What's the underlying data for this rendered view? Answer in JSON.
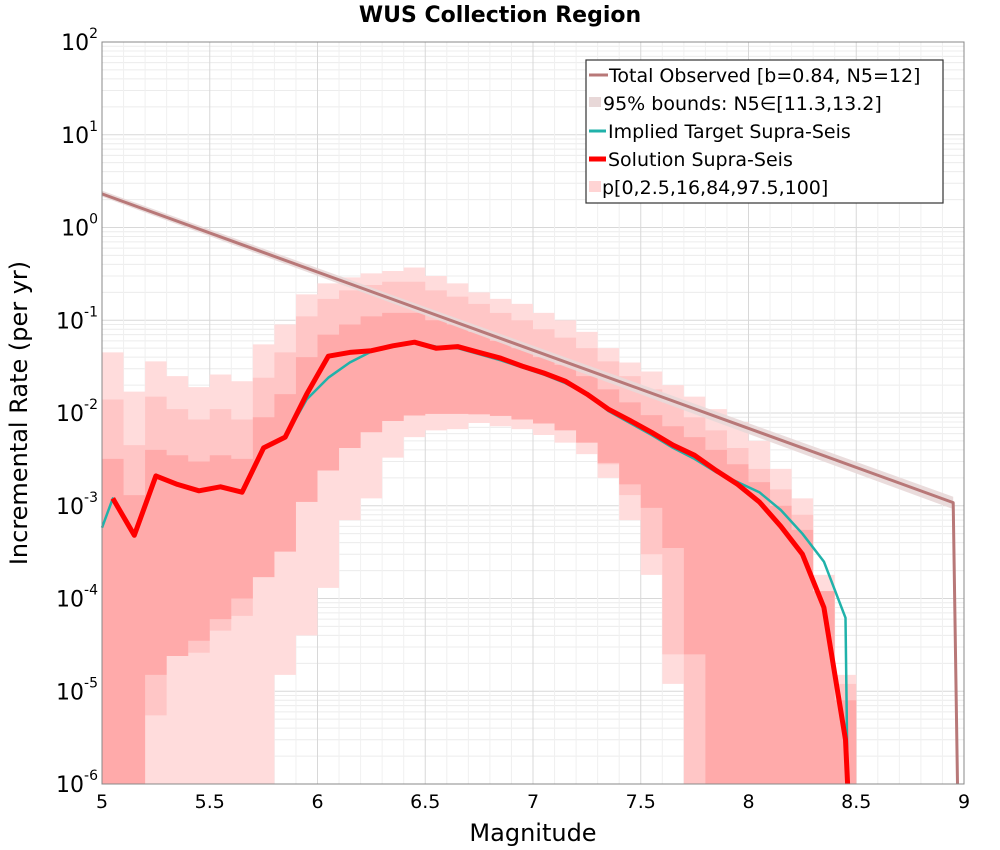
{
  "chart_data": {
    "type": "line",
    "title": "WUS Collection Region",
    "xlabel": "Magnitude",
    "ylabel": "Incremental Rate (per yr)",
    "xlim": [
      5,
      9
    ],
    "ylim": [
      1e-06,
      100
    ],
    "yscale": "log",
    "grid": true,
    "legend_position": "top-right",
    "x_ticks": [
      5,
      5.5,
      6,
      6.5,
      7,
      7.5,
      8,
      8.5,
      9
    ],
    "x_tick_labels": [
      "5",
      "5.5",
      "6",
      "6.5",
      "7",
      "7.5",
      "8",
      "8.5",
      "9"
    ],
    "y_ticks": [
      {
        "value": 1e-06,
        "base": "10",
        "exp": "-6"
      },
      {
        "value": 1e-05,
        "base": "10",
        "exp": "-5"
      },
      {
        "value": 0.0001,
        "base": "10",
        "exp": "-4"
      },
      {
        "value": 0.001,
        "base": "10",
        "exp": "-3"
      },
      {
        "value": 0.01,
        "base": "10",
        "exp": "-2"
      },
      {
        "value": 0.1,
        "base": "10",
        "exp": "-1"
      },
      {
        "value": 1,
        "base": "10",
        "exp": "0"
      },
      {
        "value": 10,
        "base": "10",
        "exp": "1"
      },
      {
        "value": 100,
        "base": "10",
        "exp": "2"
      }
    ],
    "series": [
      {
        "name": "Total Observed [b=0.84, N5=12]",
        "color": "#b87878",
        "style": "line",
        "x": [
          5.0,
          8.95,
          8.97
        ],
        "y": [
          2.3,
          0.00108,
          1e-06
        ]
      },
      {
        "name": "95% bounds: N5∈[11.3,13.2]",
        "color": "#e8d8d8",
        "style": "band",
        "x": [
          5.0,
          8.95
        ],
        "y_low": [
          2.15,
          0.00092
        ],
        "y_high": [
          2.5,
          0.00125
        ]
      },
      {
        "name": "Implied Target Supra-Seis",
        "color": "#20b2aa",
        "style": "line",
        "x": [
          5.0,
          5.05,
          5.15,
          5.25,
          5.35,
          5.45,
          5.55,
          5.65,
          5.75,
          5.85,
          5.95,
          6.05,
          6.15,
          6.25,
          6.35,
          6.45,
          6.55,
          6.65,
          6.75,
          6.85,
          6.95,
          7.05,
          7.15,
          7.25,
          7.35,
          7.45,
          7.55,
          7.65,
          7.75,
          7.85,
          7.95,
          8.05,
          8.15,
          8.25,
          8.35,
          8.45,
          8.46
        ],
        "y": [
          0.00058,
          0.0012,
          0.00048,
          0.0021,
          0.0017,
          0.00145,
          0.0016,
          0.0014,
          0.0042,
          0.0055,
          0.014,
          0.024,
          0.035,
          0.046,
          0.052,
          0.058,
          0.052,
          0.05,
          0.043,
          0.037,
          0.031,
          0.026,
          0.021,
          0.016,
          0.0105,
          0.0078,
          0.0058,
          0.0042,
          0.0032,
          0.0023,
          0.0018,
          0.0014,
          0.0009,
          0.0005,
          0.00025,
          6.2e-05,
          1e-06
        ]
      },
      {
        "name": "Solution Supra-Seis",
        "color": "#ff0000",
        "style": "line",
        "x": [
          5.05,
          5.15,
          5.25,
          5.35,
          5.45,
          5.55,
          5.65,
          5.75,
          5.85,
          5.95,
          6.05,
          6.15,
          6.25,
          6.35,
          6.45,
          6.55,
          6.65,
          6.75,
          6.85,
          6.95,
          7.05,
          7.15,
          7.25,
          7.35,
          7.45,
          7.55,
          7.65,
          7.75,
          7.85,
          7.95,
          8.05,
          8.15,
          8.25,
          8.35,
          8.45,
          8.46
        ],
        "y": [
          0.0012,
          0.00048,
          0.0021,
          0.0017,
          0.00145,
          0.0016,
          0.0014,
          0.0042,
          0.0055,
          0.016,
          0.041,
          0.045,
          0.047,
          0.053,
          0.058,
          0.05,
          0.052,
          0.045,
          0.039,
          0.032,
          0.027,
          0.022,
          0.016,
          0.011,
          0.0083,
          0.0062,
          0.0045,
          0.0035,
          0.0024,
          0.0017,
          0.0011,
          0.0006,
          0.0003,
          8e-05,
          3e-06,
          1e-06
        ]
      },
      {
        "name": "p[0,2.5,16,84,97.5,100]",
        "color": "#ffb4b4",
        "style": "percentile-bands",
        "x": [
          5.05,
          5.15,
          5.25,
          5.35,
          5.45,
          5.55,
          5.65,
          5.75,
          5.85,
          5.95,
          6.05,
          6.15,
          6.25,
          6.35,
          6.45,
          6.55,
          6.65,
          6.75,
          6.85,
          6.95,
          7.05,
          7.15,
          7.25,
          7.35,
          7.45,
          7.55,
          7.65,
          7.75,
          7.85,
          7.95,
          8.05,
          8.15,
          8.25,
          8.35,
          8.45
        ],
        "bands": [
          {
            "percentiles": "0-100",
            "low": [
              1e-06,
              1e-06,
              1e-06,
              1e-06,
              1e-06,
              1e-06,
              1e-06,
              1e-06,
              1.5e-05,
              4e-05,
              0.00013,
              0.0007,
              0.0012,
              0.0033,
              0.0055,
              0.0065,
              0.0067,
              0.0078,
              0.0072,
              0.0067,
              0.0058,
              0.0048,
              0.0036,
              0.002,
              0.0007,
              0.00018,
              1.2e-05,
              1e-06,
              1e-06,
              1e-06,
              1e-06,
              1e-06,
              1e-06,
              1e-06,
              1e-06
            ],
            "high": [
              0.045,
              0.017,
              0.036,
              0.025,
              0.019,
              0.026,
              0.022,
              0.055,
              0.09,
              0.19,
              0.25,
              0.29,
              0.32,
              0.34,
              0.37,
              0.3,
              0.25,
              0.2,
              0.17,
              0.15,
              0.12,
              0.1,
              0.075,
              0.05,
              0.035,
              0.028,
              0.02,
              0.015,
              0.011,
              0.008,
              0.005,
              0.0025,
              0.0012,
              0.00018,
              1.5e-05
            ]
          },
          {
            "percentiles": "2.5-97.5",
            "low": [
              1e-06,
              1e-06,
              5.5e-06,
              2.4e-05,
              2.6e-05,
              4.5e-05,
              6.5e-05,
              0.00017,
              0.00034,
              0.0011,
              0.0025,
              0.0045,
              0.0065,
              0.0085,
              0.0095,
              0.0098,
              0.0098,
              0.0097,
              0.0093,
              0.0088,
              0.0078,
              0.0067,
              0.0048,
              0.0028,
              0.0013,
              0.0003,
              2.5e-05,
              1e-06,
              1e-06,
              1e-06,
              1e-06,
              1e-06,
              1e-06,
              1e-06,
              1e-06
            ],
            "high": [
              0.014,
              0.0045,
              0.015,
              0.011,
              0.0085,
              0.011,
              0.0085,
              0.024,
              0.045,
              0.11,
              0.17,
              0.21,
              0.24,
              0.26,
              0.26,
              0.21,
              0.18,
              0.15,
              0.12,
              0.1,
              0.08,
              0.065,
              0.05,
              0.036,
              0.025,
              0.018,
              0.013,
              0.009,
              0.0065,
              0.0042,
              0.0025,
              0.0015,
              0.0008,
              0.00012,
              1.2e-05
            ]
          },
          {
            "percentiles": "16-84",
            "low": [
              1e-06,
              1e-06,
              1.5e-05,
              2.4e-05,
              3.5e-05,
              6e-05,
              0.0001,
              0.00017,
              0.00032,
              0.0011,
              0.0024,
              0.0042,
              0.0062,
              0.0082,
              0.0094,
              0.0098,
              0.0098,
              0.0097,
              0.0093,
              0.0085,
              0.0077,
              0.0065,
              0.0048,
              0.0029,
              0.0017,
              0.00095,
              0.00035,
              2.5e-05,
              1e-06,
              1e-06,
              1e-06,
              1e-06,
              1e-06,
              1e-06,
              1e-06
            ],
            "high": [
              0.0032,
              0.0013,
              0.004,
              0.0035,
              0.003,
              0.0035,
              0.0032,
              0.009,
              0.016,
              0.04,
              0.07,
              0.09,
              0.11,
              0.12,
              0.12,
              0.1,
              0.09,
              0.075,
              0.06,
              0.05,
              0.04,
              0.033,
              0.025,
              0.018,
              0.013,
              0.0095,
              0.0072,
              0.0055,
              0.004,
              0.0028,
              0.0018,
              0.001,
              0.00055,
              0.00012,
              8e-06
            ]
          }
        ]
      }
    ]
  }
}
